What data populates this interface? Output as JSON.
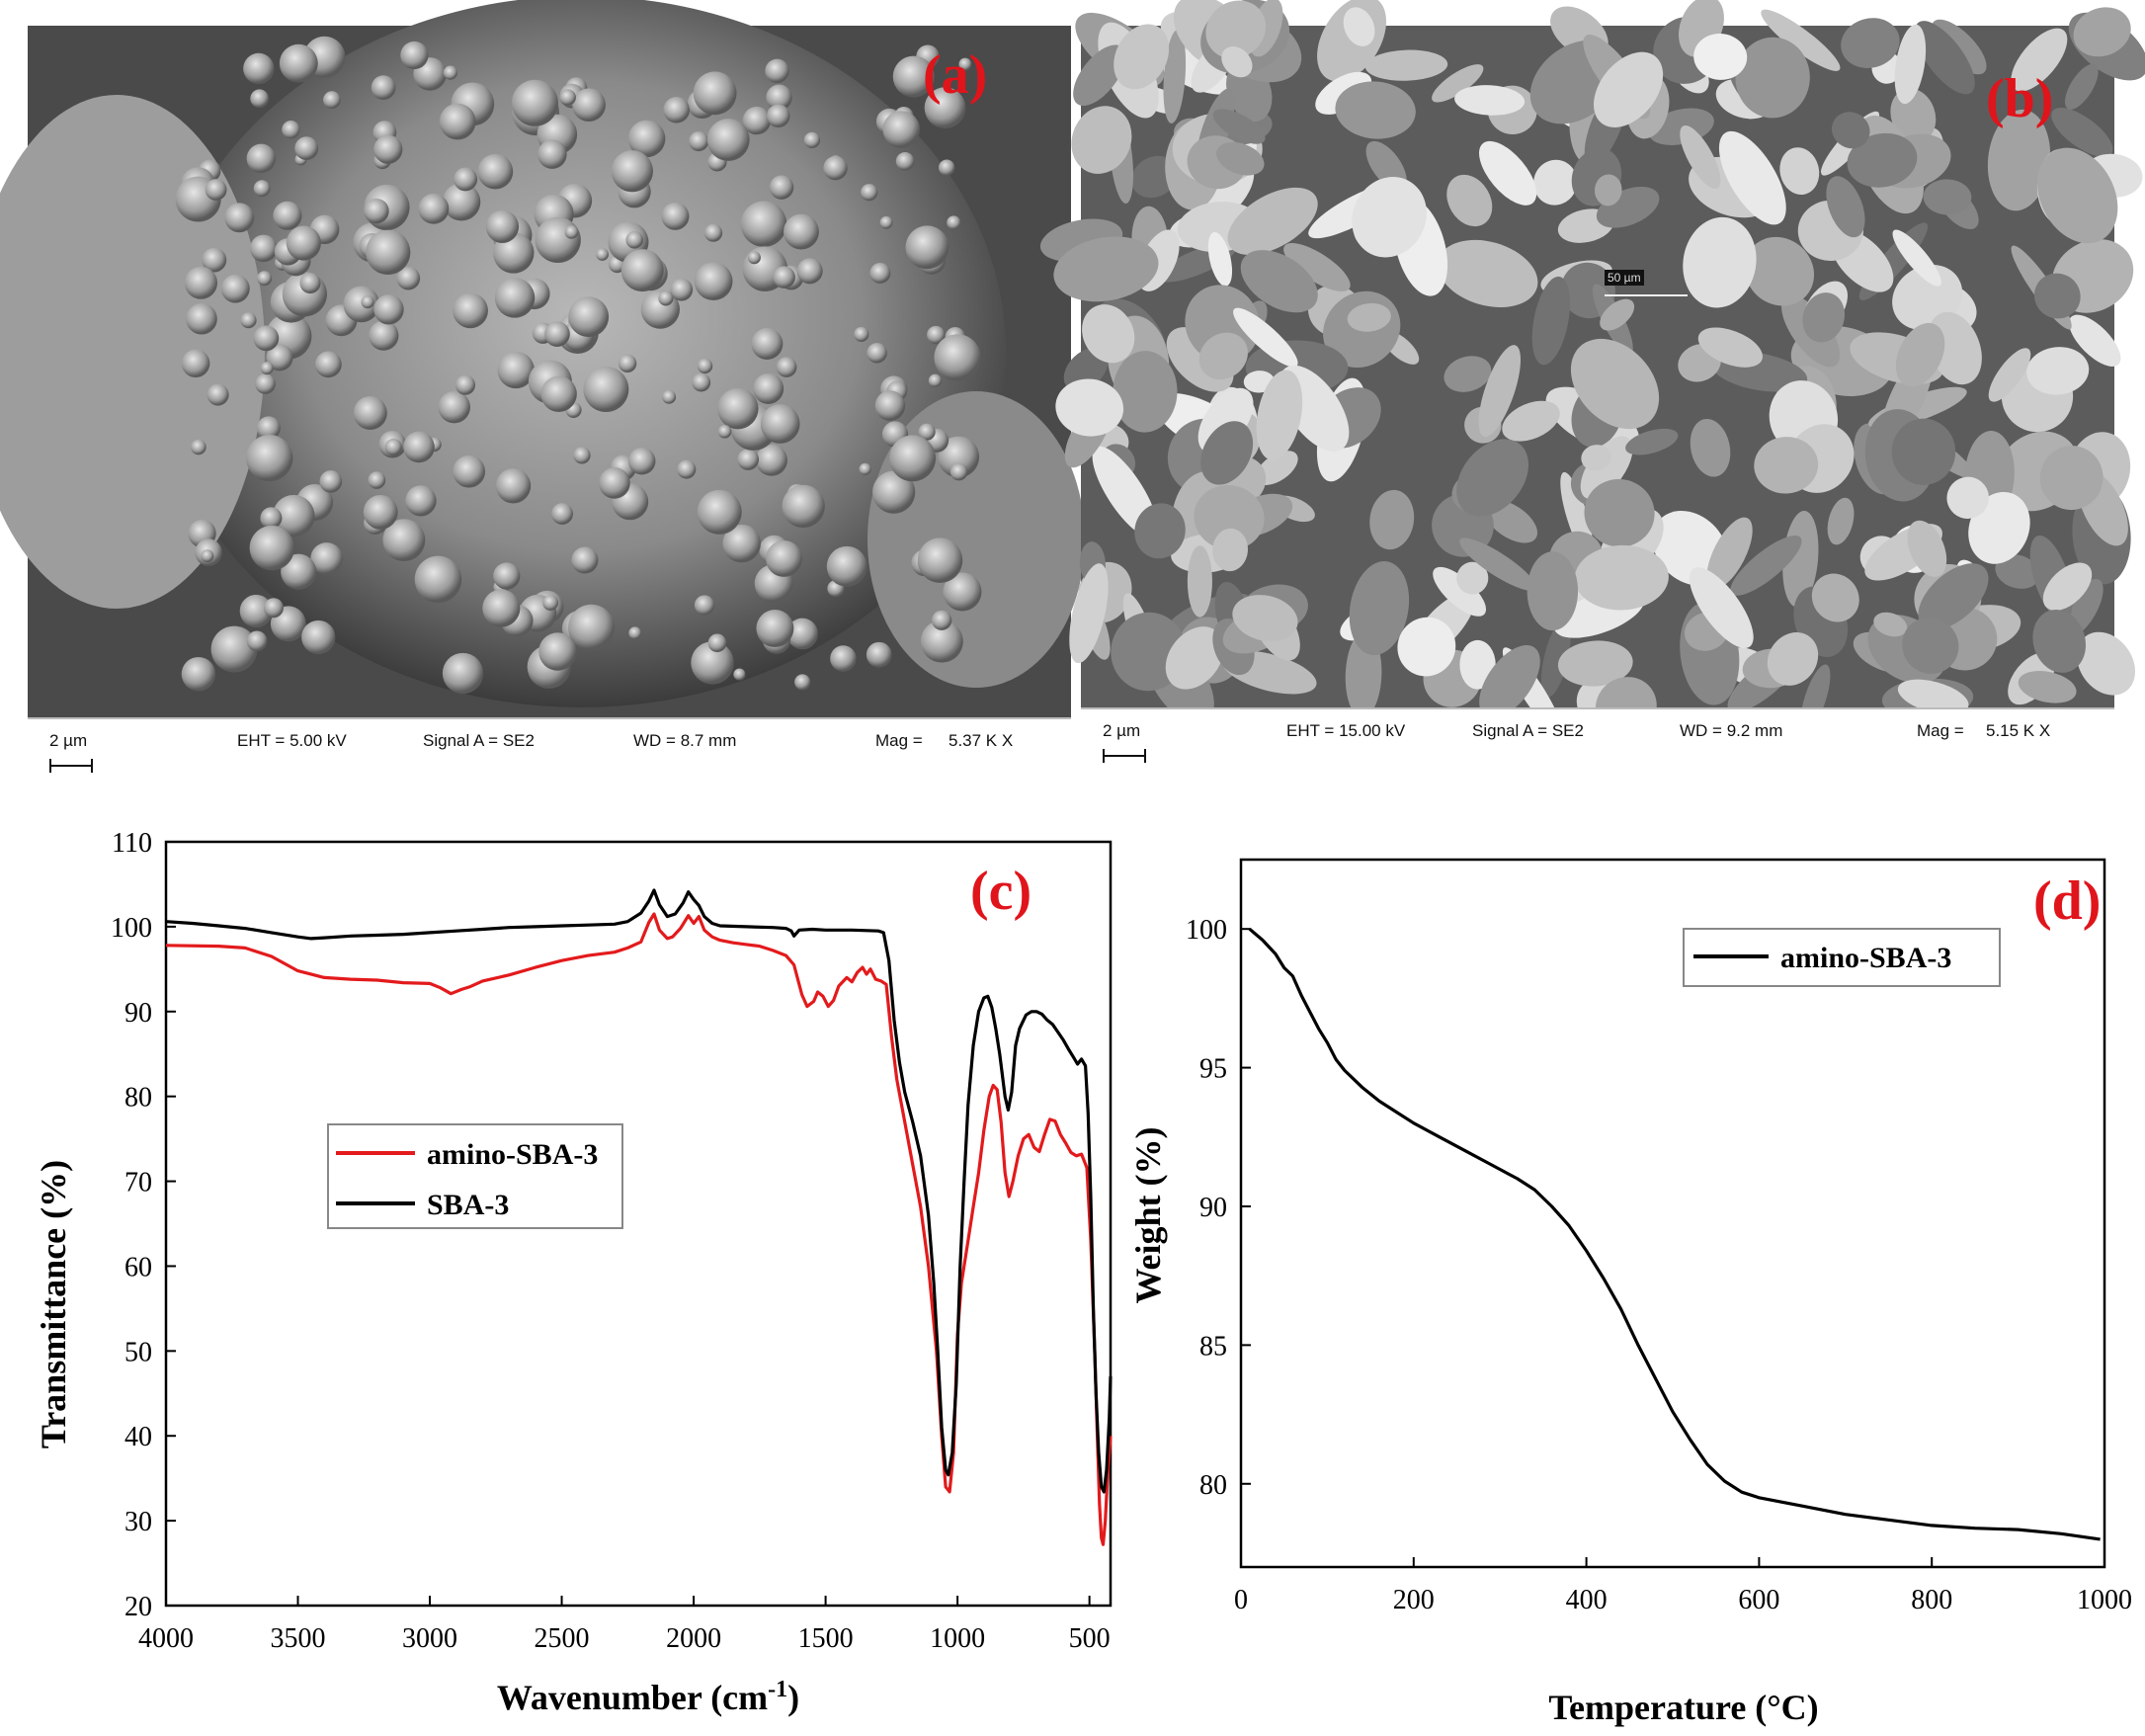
{
  "panel_labels": {
    "a": "(a)",
    "b": "(b)",
    "c": "(c)",
    "d": "(d)"
  },
  "sem": [
    {
      "scale": "2 µm",
      "eht": "EHT = 5.00 kV",
      "signal": "Signal A = SE2",
      "wd": "WD = 8.7 mm",
      "mag_label": "Mag =",
      "mag": "5.37 K X"
    },
    {
      "scale": "2 µm",
      "eht": "EHT = 15.00 kV",
      "signal": "Signal A = SE2",
      "wd": "WD = 9.2 mm",
      "mag_label": "Mag =",
      "mag": "5.15 K X",
      "inset_scale": "50 µm"
    }
  ],
  "colors": {
    "amino": "#e31a1c",
    "sba": "#000000",
    "label": "#e0141b"
  },
  "chart_data": [
    {
      "type": "line",
      "panel": "(c)",
      "xlabel": "Wavenumber (cm",
      "xlabel_sup": "-1",
      "xlabel_close": ")",
      "ylabel": "Transmittance (%)",
      "xlim": [
        4000,
        420
      ],
      "ylim": [
        20,
        110
      ],
      "xticks": [
        4000,
        3500,
        3000,
        2500,
        2000,
        1500,
        1000,
        500
      ],
      "yticks": [
        20,
        30,
        40,
        50,
        60,
        70,
        80,
        90,
        100,
        110
      ],
      "legend_position": "center-left",
      "series": [
        {
          "name": "amino-SBA-3",
          "color": "#e31a1c",
          "points": [
            [
              4000,
              97.8
            ],
            [
              3800,
              97.7
            ],
            [
              3700,
              97.5
            ],
            [
              3600,
              96.5
            ],
            [
              3500,
              94.8
            ],
            [
              3400,
              94
            ],
            [
              3300,
              93.8
            ],
            [
              3200,
              93.7
            ],
            [
              3100,
              93.4
            ],
            [
              3000,
              93.3
            ],
            [
              2960,
              92.8
            ],
            [
              2920,
              92.1
            ],
            [
              2880,
              92.6
            ],
            [
              2850,
              92.9
            ],
            [
              2800,
              93.6
            ],
            [
              2700,
              94.3
            ],
            [
              2600,
              95.2
            ],
            [
              2500,
              96
            ],
            [
              2400,
              96.6
            ],
            [
              2300,
              97
            ],
            [
              2250,
              97.5
            ],
            [
              2200,
              98.2
            ],
            [
              2170,
              100.5
            ],
            [
              2150,
              101.5
            ],
            [
              2130,
              99.6
            ],
            [
              2100,
              98.6
            ],
            [
              2080,
              98.8
            ],
            [
              2050,
              99.8
            ],
            [
              2020,
              101.3
            ],
            [
              2000,
              100.4
            ],
            [
              1980,
              101.2
            ],
            [
              1960,
              99.6
            ],
            [
              1930,
              98.8
            ],
            [
              1900,
              98.4
            ],
            [
              1850,
              98.1
            ],
            [
              1800,
              97.9
            ],
            [
              1750,
              97.7
            ],
            [
              1700,
              97.2
            ],
            [
              1650,
              96.6
            ],
            [
              1620,
              95.5
            ],
            [
              1590,
              92
            ],
            [
              1570,
              90.6
            ],
            [
              1545,
              91.2
            ],
            [
              1530,
              92.3
            ],
            [
              1510,
              91.8
            ],
            [
              1490,
              90.6
            ],
            [
              1470,
              91.3
            ],
            [
              1450,
              93
            ],
            [
              1420,
              94
            ],
            [
              1400,
              93.5
            ],
            [
              1380,
              94.6
            ],
            [
              1360,
              95.2
            ],
            [
              1345,
              94.4
            ],
            [
              1330,
              95
            ],
            [
              1310,
              93.8
            ],
            [
              1290,
              93.6
            ],
            [
              1270,
              93.2
            ],
            [
              1250,
              87
            ],
            [
              1230,
              82
            ],
            [
              1200,
              77
            ],
            [
              1170,
              72
            ],
            [
              1140,
              67
            ],
            [
              1110,
              60
            ],
            [
              1080,
              50
            ],
            [
              1060,
              40
            ],
            [
              1045,
              34
            ],
            [
              1030,
              33.4
            ],
            [
              1015,
              38
            ],
            [
              1000,
              52
            ],
            [
              985,
              58
            ],
            [
              960,
              63
            ],
            [
              940,
              67
            ],
            [
              920,
              71
            ],
            [
              900,
              76
            ],
            [
              880,
              80
            ],
            [
              865,
              81.3
            ],
            [
              850,
              80.8
            ],
            [
              835,
              77
            ],
            [
              820,
              71
            ],
            [
              805,
              68.2
            ],
            [
              790,
              70
            ],
            [
              770,
              73
            ],
            [
              750,
              75
            ],
            [
              730,
              75.5
            ],
            [
              710,
              74
            ],
            [
              690,
              73.5
            ],
            [
              670,
              75.5
            ],
            [
              650,
              77.3
            ],
            [
              630,
              77.1
            ],
            [
              610,
              75.5
            ],
            [
              590,
              74.5
            ],
            [
              570,
              73.4
            ],
            [
              550,
              73
            ],
            [
              530,
              73.2
            ],
            [
              510,
              71.6
            ],
            [
              495,
              63
            ],
            [
              480,
              50
            ],
            [
              470,
              40
            ],
            [
              462,
              32
            ],
            [
              455,
              28
            ],
            [
              448,
              27.2
            ],
            [
              440,
              30
            ],
            [
              430,
              36
            ],
            [
              420,
              40
            ]
          ]
        },
        {
          "name": "SBA-3",
          "color": "#000000",
          "points": [
            [
              4000,
              100.6
            ],
            [
              3900,
              100.4
            ],
            [
              3800,
              100.1
            ],
            [
              3700,
              99.8
            ],
            [
              3600,
              99.3
            ],
            [
              3500,
              98.8
            ],
            [
              3450,
              98.6
            ],
            [
              3400,
              98.7
            ],
            [
              3300,
              98.9
            ],
            [
              3200,
              99
            ],
            [
              3100,
              99.1
            ],
            [
              3000,
              99.3
            ],
            [
              2900,
              99.5
            ],
            [
              2800,
              99.7
            ],
            [
              2700,
              99.9
            ],
            [
              2600,
              100
            ],
            [
              2500,
              100.1
            ],
            [
              2400,
              100.2
            ],
            [
              2300,
              100.3
            ],
            [
              2250,
              100.6
            ],
            [
              2200,
              101.6
            ],
            [
              2170,
              103
            ],
            [
              2150,
              104.3
            ],
            [
              2130,
              102.6
            ],
            [
              2100,
              101.2
            ],
            [
              2070,
              101.5
            ],
            [
              2040,
              102.8
            ],
            [
              2020,
              104.1
            ],
            [
              2000,
              103.2
            ],
            [
              1980,
              102.5
            ],
            [
              1960,
              101.2
            ],
            [
              1930,
              100.4
            ],
            [
              1900,
              100.1
            ],
            [
              1800,
              100
            ],
            [
              1700,
              99.9
            ],
            [
              1650,
              99.8
            ],
            [
              1630,
              99.5
            ],
            [
              1620,
              98.9
            ],
            [
              1600,
              99.6
            ],
            [
              1550,
              99.7
            ],
            [
              1500,
              99.6
            ],
            [
              1400,
              99.6
            ],
            [
              1300,
              99.5
            ],
            [
              1280,
              99.3
            ],
            [
              1260,
              96
            ],
            [
              1240,
              89
            ],
            [
              1220,
              84
            ],
            [
              1200,
              80.5
            ],
            [
              1170,
              77
            ],
            [
              1140,
              73
            ],
            [
              1110,
              66
            ],
            [
              1090,
              58
            ],
            [
              1075,
              50
            ],
            [
              1060,
              41
            ],
            [
              1045,
              36
            ],
            [
              1035,
              35.4
            ],
            [
              1020,
              38
            ],
            [
              1005,
              46
            ],
            [
              990,
              60
            ],
            [
              975,
              70
            ],
            [
              960,
              79
            ],
            [
              940,
              86
            ],
            [
              920,
              90
            ],
            [
              900,
              91.6
            ],
            [
              885,
              91.8
            ],
            [
              870,
              90.5
            ],
            [
              855,
              88
            ],
            [
              840,
              85
            ],
            [
              820,
              80
            ],
            [
              808,
              78.4
            ],
            [
              795,
              80.5
            ],
            [
              780,
              86
            ],
            [
              765,
              88
            ],
            [
              740,
              89.6
            ],
            [
              720,
              90
            ],
            [
              700,
              90
            ],
            [
              680,
              89.7
            ],
            [
              660,
              89
            ],
            [
              640,
              88.5
            ],
            [
              620,
              87.6
            ],
            [
              600,
              86.7
            ],
            [
              580,
              85.6
            ],
            [
              560,
              84.6
            ],
            [
              545,
              83.8
            ],
            [
              530,
              84.4
            ],
            [
              515,
              83.6
            ],
            [
              505,
              78
            ],
            [
              495,
              68
            ],
            [
              485,
              55
            ],
            [
              475,
              45
            ],
            [
              465,
              38
            ],
            [
              455,
              34
            ],
            [
              445,
              33.4
            ],
            [
              435,
              36
            ],
            [
              425,
              42
            ],
            [
              420,
              47
            ]
          ]
        }
      ]
    },
    {
      "type": "line",
      "panel": "(d)",
      "xlabel": "Temperature (°C)",
      "ylabel": "Weight (%)",
      "xlim": [
        0,
        1000
      ],
      "ylim": [
        77,
        102.5
      ],
      "xticks": [
        0,
        200,
        400,
        600,
        800,
        1000
      ],
      "yticks": [
        80,
        85,
        90,
        95,
        100
      ],
      "legend_position": "top-right",
      "series": [
        {
          "name": "amino-SBA-3",
          "color": "#000000",
          "points": [
            [
              10,
              100
            ],
            [
              25,
              99.6
            ],
            [
              40,
              99.1
            ],
            [
              50,
              98.6
            ],
            [
              60,
              98.3
            ],
            [
              70,
              97.6
            ],
            [
              80,
              97
            ],
            [
              90,
              96.4
            ],
            [
              100,
              95.9
            ],
            [
              110,
              95.3
            ],
            [
              120,
              94.9
            ],
            [
              140,
              94.3
            ],
            [
              160,
              93.8
            ],
            [
              180,
              93.4
            ],
            [
              200,
              93
            ],
            [
              230,
              92.5
            ],
            [
              260,
              92
            ],
            [
              290,
              91.5
            ],
            [
              320,
              91
            ],
            [
              340,
              90.6
            ],
            [
              360,
              90
            ],
            [
              380,
              89.3
            ],
            [
              400,
              88.4
            ],
            [
              420,
              87.4
            ],
            [
              440,
              86.3
            ],
            [
              460,
              85
            ],
            [
              480,
              83.8
            ],
            [
              500,
              82.6
            ],
            [
              520,
              81.6
            ],
            [
              540,
              80.7
            ],
            [
              560,
              80.1
            ],
            [
              580,
              79.7
            ],
            [
              600,
              79.5
            ],
            [
              650,
              79.2
            ],
            [
              700,
              78.9
            ],
            [
              750,
              78.7
            ],
            [
              800,
              78.5
            ],
            [
              850,
              78.4
            ],
            [
              900,
              78.35
            ],
            [
              950,
              78.2
            ],
            [
              995,
              78
            ]
          ]
        }
      ]
    }
  ]
}
